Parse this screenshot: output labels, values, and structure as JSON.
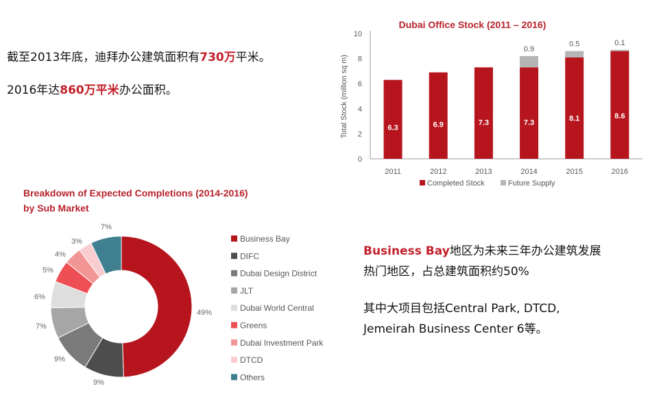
{
  "statements": {
    "line1": {
      "pre": "截至2013年底，迪拜办公建筑面积有",
      "hl": "730万",
      "post": "平米。"
    },
    "line2": {
      "pre": "2016年达",
      "hl": "860万平米",
      "post": "办公面积。"
    }
  },
  "business_bay_note": {
    "hl": "Business Bay",
    "line1_rest": "地区为未来三年办公建筑发展",
    "line2": "热门地区，占总建筑面积约50%",
    "line3": "其中大项目包括Central Park, DTCD,",
    "line4": "Jemeirah Business Center 6等。"
  },
  "colors": {
    "accent": "#c2202a",
    "completed": "#b7151e",
    "future": "#b5b5b5"
  },
  "chart_data": [
    {
      "type": "bar",
      "stacked": true,
      "title": "Dubai Office Stock (2011 – 2016)",
      "ylabel": "Total Stock (million sq m)",
      "xlabel": "",
      "ylim": [
        0,
        10
      ],
      "yticks": [
        "0",
        "2",
        "4",
        "6",
        "8",
        "10"
      ],
      "categories": [
        "2011",
        "2012",
        "2013",
        "2014",
        "2015",
        "2016"
      ],
      "series": [
        {
          "name": "Completed Stock",
          "values": [
            6.3,
            6.9,
            7.3,
            7.3,
            8.1,
            8.6
          ],
          "labels": [
            "6.3",
            "6.9",
            "7.3",
            "7.3",
            "8.1",
            "8.6"
          ],
          "color": "#b7151e"
        },
        {
          "name": "Future Supply",
          "values": [
            0,
            0,
            0,
            0.9,
            0.5,
            0.1
          ],
          "labels": [
            "",
            "",
            "",
            "0.9",
            "0.5",
            "0.1"
          ],
          "color": "#b5b5b5"
        }
      ],
      "legend": "bottom",
      "grid": false
    },
    {
      "type": "pie",
      "donut": true,
      "title_lines": [
        "Breakdown of Expected Completions  (2014-2016)",
        "by Sub Market"
      ],
      "slices": [
        {
          "name": "Business Bay",
          "value": 49,
          "label": "49%",
          "color": "#b7151e"
        },
        {
          "name": "DIFC",
          "value": 9,
          "label": "9%",
          "color": "#4d4d4d"
        },
        {
          "name": "Dubai Design District",
          "value": 9,
          "label": "9%",
          "color": "#7a7a7a"
        },
        {
          "name": "JLT",
          "value": 7,
          "label": "7%",
          "color": "#a6a6a6"
        },
        {
          "name": "Dubai World Central",
          "value": 6,
          "label": "6%",
          "color": "#dedede"
        },
        {
          "name": "Greens",
          "value": 5,
          "label": "5%",
          "color": "#ee4f55"
        },
        {
          "name": "Dubai Investment Park",
          "value": 4,
          "label": "4%",
          "color": "#f29595"
        },
        {
          "name": "DTCD",
          "value": 3,
          "label": "3%",
          "color": "#f9cdd0"
        },
        {
          "name": "Others",
          "value": 7,
          "label": "7%",
          "color": "#3f7f8f"
        }
      ],
      "legend": "right"
    }
  ]
}
